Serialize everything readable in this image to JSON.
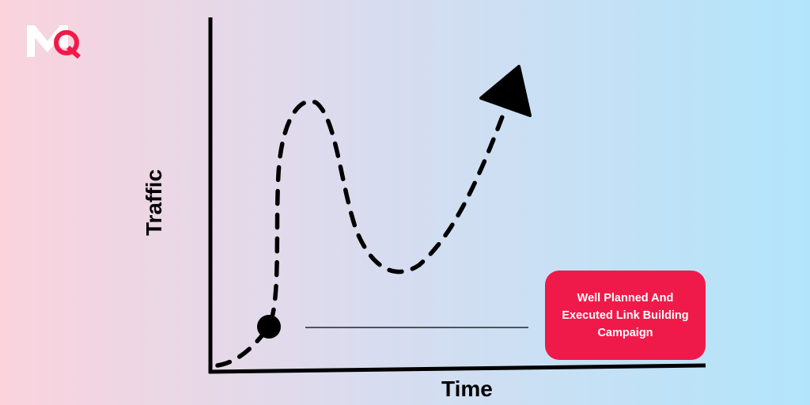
{
  "logo": {
    "text": "MQ",
    "colors": {
      "m": "#ffffff",
      "q": "#f01a4a"
    }
  },
  "axes": {
    "y_label": "Traffic",
    "x_label": "Time"
  },
  "callout": {
    "lines": [
      "Well Planned And",
      "Executed Link Building",
      "Campaign"
    ],
    "color": "#f01a4a"
  },
  "colors": {
    "line": "#000000",
    "background_start": "#fad3dd",
    "background_end": "#b2e5fb"
  }
}
